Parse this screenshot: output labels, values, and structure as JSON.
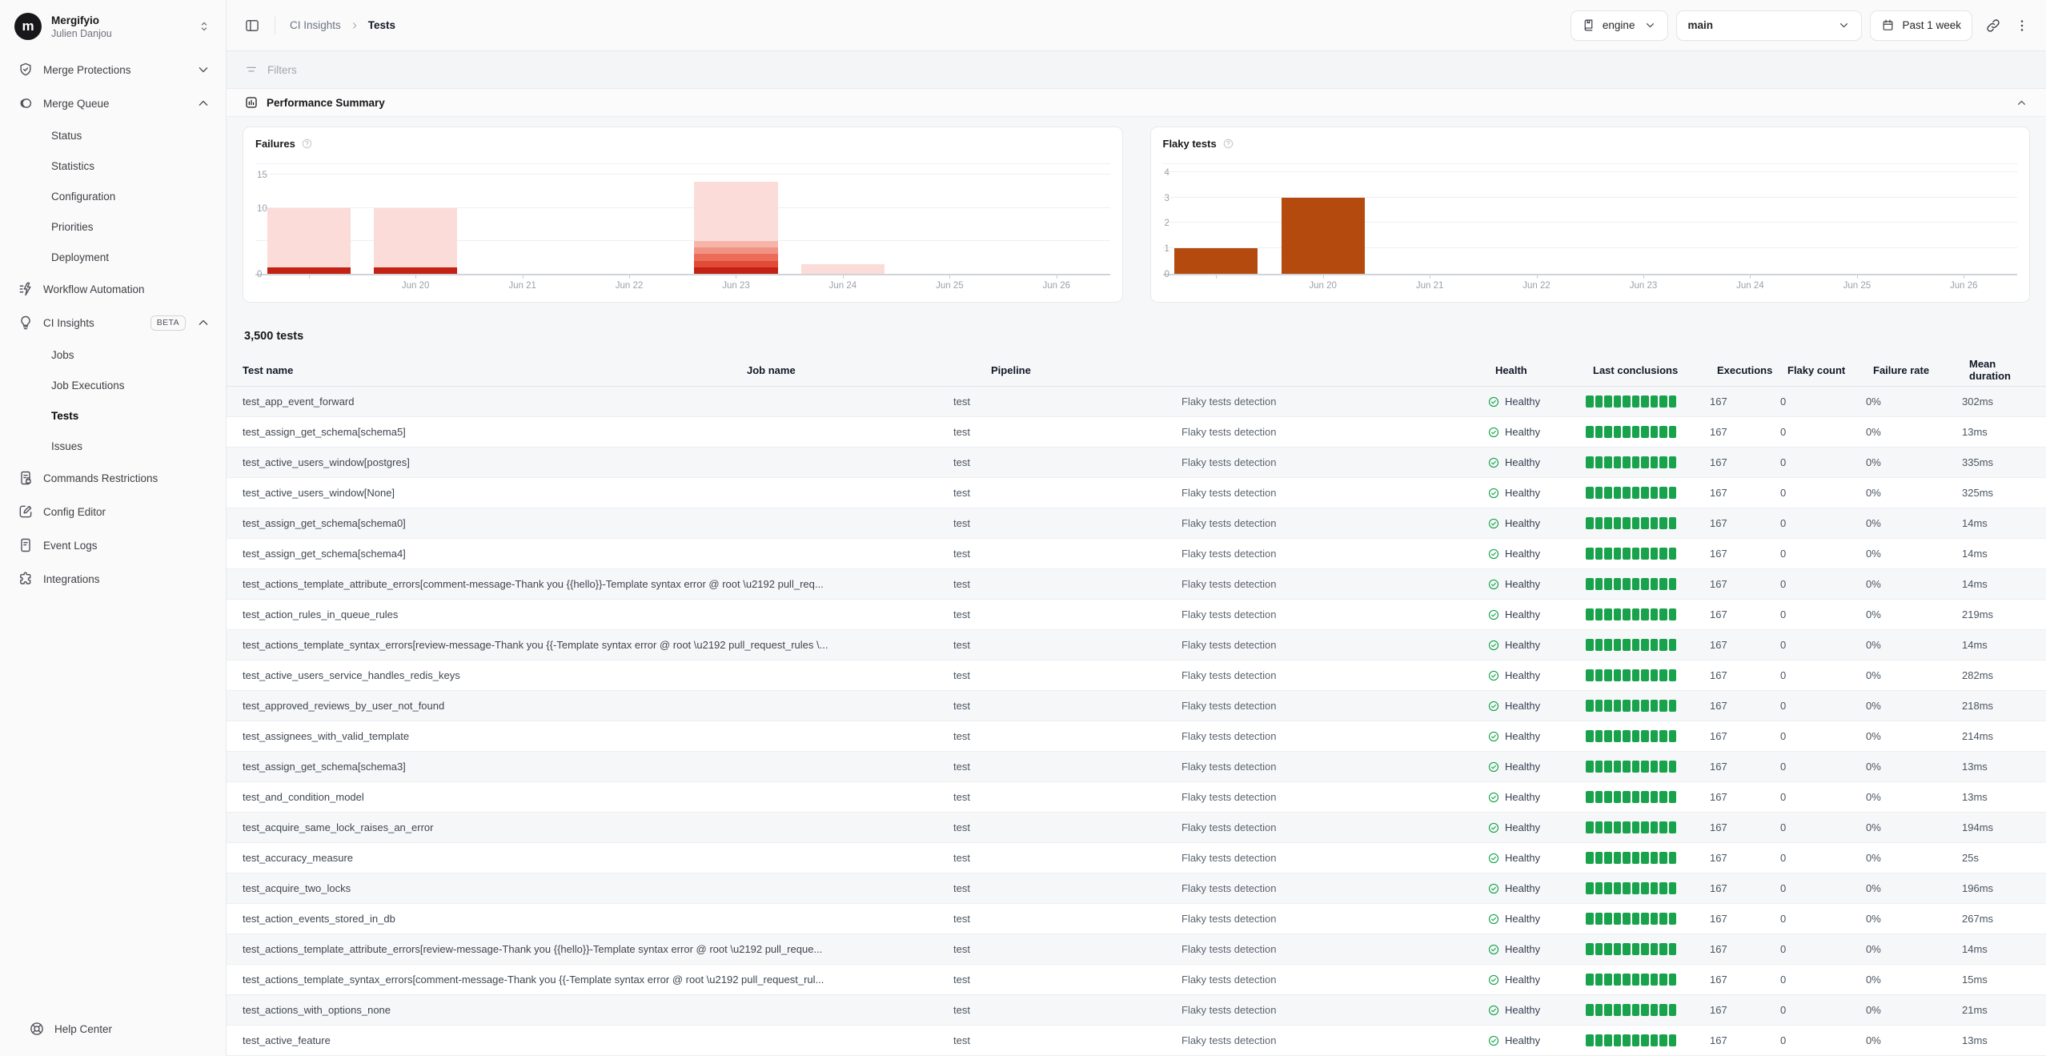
{
  "colors": {
    "conclusion_green": "#17a24b",
    "health_green": "#16a34a",
    "failure_dark_red": "#c22114",
    "failure_light_pink": "#fbdcd8",
    "flaky_orange": "#b54a0e"
  },
  "sidebar": {
    "org": {
      "name": "Mergifyio",
      "user": "Julien Danjou",
      "avatar_letter": "m"
    },
    "sections": [
      {
        "id": "merge-protections",
        "icon": "shield-check",
        "label": "Merge Protections",
        "chevron": "down",
        "children": []
      },
      {
        "id": "merge-queue",
        "icon": "merge-queue",
        "label": "Merge Queue",
        "chevron": "up",
        "children": [
          {
            "label": "Status"
          },
          {
            "label": "Statistics"
          },
          {
            "label": "Configuration"
          },
          {
            "label": "Priorities"
          },
          {
            "label": "Deployment"
          }
        ]
      },
      {
        "id": "workflow-automation",
        "icon": "workflow",
        "label": "Workflow Automation",
        "children": []
      },
      {
        "id": "ci-insights",
        "icon": "lightbulb",
        "label": "CI Insights",
        "badge": "BETA",
        "chevron": "up",
        "children": [
          {
            "label": "Jobs"
          },
          {
            "label": "Job Executions"
          },
          {
            "label": "Tests",
            "active": true
          },
          {
            "label": "Issues"
          }
        ]
      },
      {
        "id": "commands-restrictions",
        "icon": "doc-lock",
        "label": "Commands Restrictions",
        "children": []
      },
      {
        "id": "config-editor",
        "icon": "pencil-square",
        "label": "Config Editor",
        "children": []
      },
      {
        "id": "event-logs",
        "icon": "doc-lines",
        "label": "Event Logs",
        "children": []
      },
      {
        "id": "integrations",
        "icon": "puzzle",
        "label": "Integrations",
        "children": []
      }
    ],
    "help_label": "Help Center"
  },
  "topbar": {
    "breadcrumb": [
      {
        "label": "CI Insights"
      },
      {
        "label": "Tests"
      }
    ],
    "repo_button": {
      "label": "engine"
    },
    "branch_button": {
      "label": "main"
    },
    "range_button": {
      "label": "Past 1 week"
    }
  },
  "filters": {
    "label": "Filters"
  },
  "performance": {
    "title": "Performance Summary"
  },
  "chart_data": [
    {
      "type": "bar",
      "title": "Failures",
      "x_labels": [
        "",
        "Jun 20",
        "Jun 21",
        "Jun 22",
        "Jun 23",
        "Jun 24",
        "Jun 25",
        "Jun 26"
      ],
      "ylim": [
        0,
        17
      ],
      "grid": true,
      "yticks": [
        {
          "v": 15,
          "label": "15"
        },
        {
          "v": 10,
          "label": "10"
        },
        {
          "v": 5,
          "label": ""
        },
        {
          "v": 0,
          "label": "0"
        }
      ],
      "bars": [
        [
          {
            "v": 1,
            "color": "#c22114"
          },
          {
            "v": 9,
            "color": "#fbdcd8"
          }
        ],
        [
          {
            "v": 1,
            "color": "#c22114"
          },
          {
            "v": 9,
            "color": "#fbdcd8"
          }
        ],
        [],
        [],
        [
          {
            "v": 1,
            "color": "#c22114"
          },
          {
            "v": 1,
            "color": "#e04a36"
          },
          {
            "v": 1,
            "color": "#eb6c58"
          },
          {
            "v": 1,
            "color": "#f19384"
          },
          {
            "v": 1,
            "color": "#f6b5a9"
          },
          {
            "v": 9,
            "color": "#fbdcd8"
          }
        ],
        [
          {
            "v": 1.5,
            "color": "#fbdcd8"
          }
        ],
        [],
        []
      ]
    },
    {
      "type": "bar",
      "title": "Flaky tests",
      "x_labels": [
        "",
        "Jun 20",
        "Jun 21",
        "Jun 22",
        "Jun 23",
        "Jun 24",
        "Jun 25",
        "Jun 26"
      ],
      "ylim": [
        0,
        4.4
      ],
      "grid": true,
      "yticks": [
        {
          "v": 4,
          "label": "4"
        },
        {
          "v": 3,
          "label": "3"
        },
        {
          "v": 2,
          "label": "2"
        },
        {
          "v": 1,
          "label": "1"
        },
        {
          "v": 0,
          "label": "0"
        }
      ],
      "bars": [
        [
          {
            "v": 1,
            "color": "#b54a0e"
          }
        ],
        [
          {
            "v": 3,
            "color": "#b54a0e"
          }
        ],
        [],
        [],
        [],
        [],
        [],
        []
      ]
    }
  ],
  "tests": {
    "count_label": "3,500 tests",
    "columns": [
      "Test name",
      "Job name",
      "Pipeline",
      "Health",
      "Last conclusions",
      "Executions",
      "Flaky count",
      "Failure rate",
      "Mean duration"
    ],
    "row_defaults": {
      "job": "test",
      "pipeline": "Flaky tests detection",
      "health": "Healthy",
      "executions": "167",
      "flaky_count": "0",
      "failure_rate": "0%",
      "conclusions": 10
    },
    "rows": [
      {
        "name": "test_app_event_forward",
        "duration": "302ms"
      },
      {
        "name": "test_assign_get_schema[schema5]",
        "duration": "13ms"
      },
      {
        "name": "test_active_users_window[postgres]",
        "duration": "335ms"
      },
      {
        "name": "test_active_users_window[None]",
        "duration": "325ms"
      },
      {
        "name": "test_assign_get_schema[schema0]",
        "duration": "14ms"
      },
      {
        "name": "test_assign_get_schema[schema4]",
        "duration": "14ms"
      },
      {
        "name": "test_actions_template_attribute_errors[comment-message-Thank you {{hello}}-Template syntax error @ root \\u2192 pull_req...",
        "duration": "14ms"
      },
      {
        "name": "test_action_rules_in_queue_rules",
        "duration": "219ms"
      },
      {
        "name": "test_actions_template_syntax_errors[review-message-Thank you {{-Template syntax error @ root \\u2192 pull_request_rules \\...",
        "duration": "14ms"
      },
      {
        "name": "test_active_users_service_handles_redis_keys",
        "duration": "282ms"
      },
      {
        "name": "test_approved_reviews_by_user_not_found",
        "duration": "218ms"
      },
      {
        "name": "test_assignees_with_valid_template",
        "duration": "214ms"
      },
      {
        "name": "test_assign_get_schema[schema3]",
        "duration": "13ms"
      },
      {
        "name": "test_and_condition_model",
        "duration": "13ms"
      },
      {
        "name": "test_acquire_same_lock_raises_an_error",
        "duration": "194ms"
      },
      {
        "name": "test_accuracy_measure",
        "duration": "25s"
      },
      {
        "name": "test_acquire_two_locks",
        "duration": "196ms"
      },
      {
        "name": "test_action_events_stored_in_db",
        "duration": "267ms"
      },
      {
        "name": "test_actions_template_attribute_errors[review-message-Thank you {{hello}}-Template syntax error @ root \\u2192 pull_reque...",
        "duration": "14ms"
      },
      {
        "name": "test_actions_template_syntax_errors[comment-message-Thank you {{-Template syntax error @ root \\u2192 pull_request_rul...",
        "duration": "15ms"
      },
      {
        "name": "test_actions_with_options_none",
        "duration": "21ms"
      },
      {
        "name": "test_active_feature",
        "duration": "13ms"
      }
    ]
  }
}
